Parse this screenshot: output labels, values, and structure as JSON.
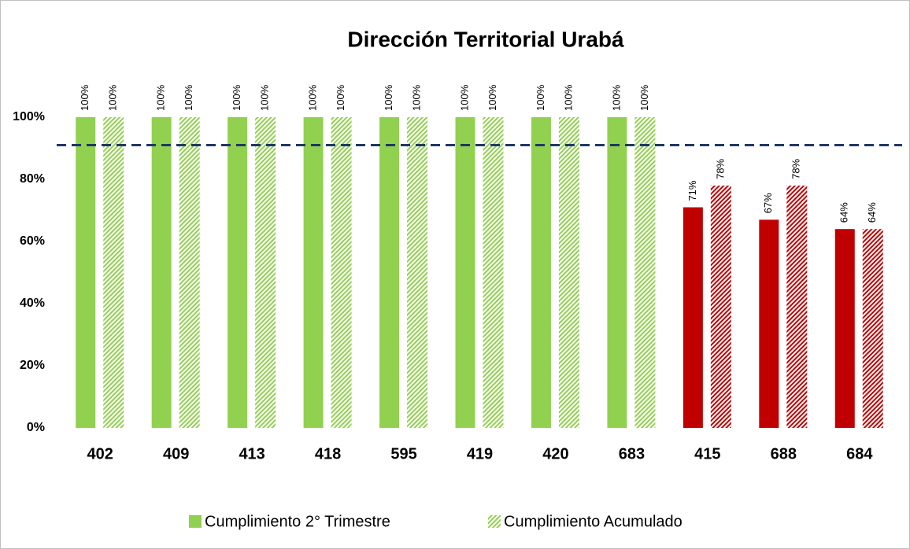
{
  "chart_data": {
    "type": "bar",
    "title": "Dirección Territorial Urabá",
    "categories": [
      "402",
      "409",
      "413",
      "418",
      "595",
      "419",
      "420",
      "683",
      "415",
      "688",
      "684"
    ],
    "series": [
      {
        "name": "Cumplimiento 2° Trimestre",
        "color": "#92d050",
        "pattern": "solid",
        "colors": [
          "#92d050",
          "#92d050",
          "#92d050",
          "#92d050",
          "#92d050",
          "#92d050",
          "#92d050",
          "#92d050",
          "#c00000",
          "#c00000",
          "#c00000"
        ],
        "values": [
          100,
          100,
          100,
          100,
          100,
          100,
          100,
          100,
          71,
          67,
          64
        ],
        "value_labels": [
          "100%",
          "100%",
          "100%",
          "100%",
          "100%",
          "100%",
          "100%",
          "100%",
          "71%",
          "67%",
          "64%"
        ]
      },
      {
        "name": "Cumplimiento Acumulado",
        "color": "#92d050",
        "pattern": "hatch",
        "colors": [
          "#92d050",
          "#92d050",
          "#92d050",
          "#92d050",
          "#92d050",
          "#92d050",
          "#92d050",
          "#92d050",
          "#c00000",
          "#c00000",
          "#c00000"
        ],
        "values": [
          100,
          100,
          100,
          100,
          100,
          100,
          100,
          100,
          78,
          78,
          64
        ],
        "value_labels": [
          "100%",
          "100%",
          "100%",
          "100%",
          "100%",
          "100%",
          "100%",
          "100%",
          "78%",
          "78%",
          "64%"
        ]
      }
    ],
    "reference_line": {
      "value": 91,
      "color": "#1f3864"
    },
    "ylim": [
      0,
      110
    ],
    "yticks": [
      {
        "value": 0,
        "label": "0%"
      },
      {
        "value": 20,
        "label": "20%"
      },
      {
        "value": 40,
        "label": "40%"
      },
      {
        "value": 60,
        "label": "60%"
      },
      {
        "value": 80,
        "label": "80%"
      },
      {
        "value": 100,
        "label": "100%"
      }
    ],
    "grid": false,
    "legend": "bottom"
  }
}
